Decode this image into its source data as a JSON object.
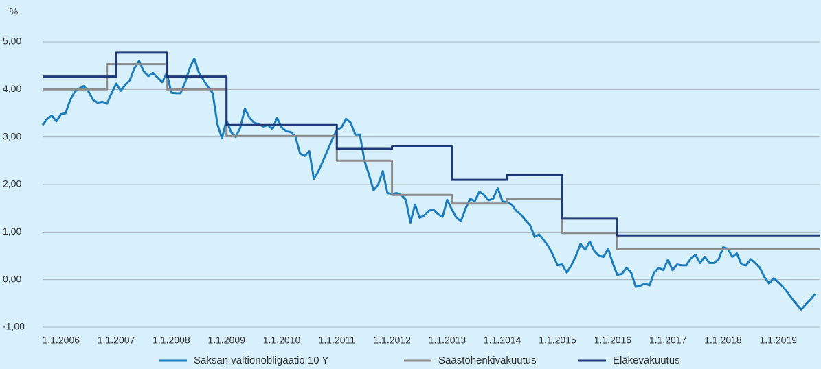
{
  "chart_data": {
    "type": "line",
    "y_label": "%",
    "xlim": [
      "1.9.2005",
      "1.10.2019"
    ],
    "xticks": [
      "1.1.2006",
      "1.1.2007",
      "1.1.2008",
      "1.1.2009",
      "1.1.2010",
      "1.1.2011",
      "1.1.2012",
      "1.1.2013",
      "1.1.2014",
      "1.1.2015",
      "1.1.2016",
      "1.1.2017",
      "1.1.2018",
      "1.1.2019"
    ],
    "ylim": [
      -1,
      5
    ],
    "yticks": [
      {
        "value": -1,
        "label": "-1,00"
      },
      {
        "value": 0,
        "label": "0,00"
      },
      {
        "value": 1,
        "label": "1,00"
      },
      {
        "value": 2,
        "label": "2,00"
      },
      {
        "value": 3,
        "label": "3,00"
      },
      {
        "value": 4,
        "label": "4,00"
      },
      {
        "value": 5,
        "label": "5,00"
      }
    ],
    "grid": true,
    "legend": "bottom",
    "series": [
      {
        "name": "Saksan valtionobligaatio 10 Y",
        "color": "#1a7dc0",
        "x": [
          "1.9.2005",
          "1.10.2005",
          "1.11.2005",
          "1.12.2005",
          "1.1.2006",
          "1.2.2006",
          "1.3.2006",
          "1.4.2006",
          "1.5.2006",
          "1.6.2006",
          "1.7.2006",
          "1.8.2006",
          "1.9.2006",
          "1.10.2006",
          "1.11.2006",
          "1.12.2006",
          "1.1.2007",
          "1.2.2007",
          "1.3.2007",
          "1.4.2007",
          "1.5.2007",
          "1.6.2007",
          "1.7.2007",
          "1.8.2007",
          "1.9.2007",
          "1.10.2007",
          "1.11.2007",
          "1.12.2007",
          "1.1.2008",
          "1.2.2008",
          "1.3.2008",
          "1.4.2008",
          "1.5.2008",
          "1.6.2008",
          "1.7.2008",
          "1.8.2008",
          "1.9.2008",
          "1.10.2008",
          "1.11.2008",
          "1.12.2008",
          "1.1.2009",
          "1.2.2009",
          "1.3.2009",
          "1.4.2009",
          "1.5.2009",
          "1.6.2009",
          "1.7.2009",
          "1.8.2009",
          "1.9.2009",
          "1.10.2009",
          "1.11.2009",
          "1.12.2009",
          "1.1.2010",
          "1.2.2010",
          "1.3.2010",
          "1.4.2010",
          "1.5.2010",
          "1.6.2010",
          "1.7.2010",
          "1.8.2010",
          "1.9.2010",
          "1.10.2010",
          "1.11.2010",
          "1.12.2010",
          "1.1.2011",
          "1.2.2011",
          "1.3.2011",
          "1.4.2011",
          "1.5.2011",
          "1.6.2011",
          "1.7.2011",
          "1.8.2011",
          "1.9.2011",
          "1.10.2011",
          "1.11.2011",
          "1.12.2011",
          "1.1.2012",
          "1.2.2012",
          "1.3.2012",
          "1.4.2012",
          "1.5.2012",
          "1.6.2012",
          "1.7.2012",
          "1.8.2012",
          "1.9.2012",
          "1.10.2012",
          "1.11.2012",
          "1.12.2012",
          "1.1.2013",
          "1.2.2013",
          "1.3.2013",
          "1.4.2013",
          "1.5.2013",
          "1.6.2013",
          "1.7.2013",
          "1.8.2013",
          "1.9.2013",
          "1.10.2013",
          "1.11.2013",
          "1.12.2013",
          "1.1.2014",
          "1.2.2014",
          "1.3.2014",
          "1.4.2014",
          "1.5.2014",
          "1.6.2014",
          "1.7.2014",
          "1.8.2014",
          "1.9.2014",
          "1.10.2014",
          "1.11.2014",
          "1.12.2014",
          "1.1.2015",
          "1.2.2015",
          "1.3.2015",
          "1.4.2015",
          "1.5.2015",
          "1.6.2015",
          "1.7.2015",
          "1.8.2015",
          "1.9.2015",
          "1.10.2015",
          "1.11.2015",
          "1.12.2015",
          "1.1.2016",
          "1.2.2016",
          "1.3.2016",
          "1.4.2016",
          "1.5.2016",
          "1.6.2016",
          "1.7.2016",
          "1.8.2016",
          "1.9.2016",
          "1.10.2016",
          "1.11.2016",
          "1.12.2016",
          "1.1.2017",
          "1.2.2017",
          "1.3.2017",
          "1.4.2017",
          "1.5.2017",
          "1.6.2017",
          "1.7.2017",
          "1.8.2017",
          "1.9.2017",
          "1.10.2017",
          "1.11.2017",
          "1.12.2017",
          "1.1.2018",
          "1.2.2018",
          "1.3.2018",
          "1.4.2018",
          "1.5.2018",
          "1.6.2018",
          "1.7.2018",
          "1.8.2018",
          "1.9.2018",
          "1.10.2018",
          "1.11.2018",
          "1.12.2018",
          "1.1.2019",
          "1.2.2019",
          "1.3.2019",
          "1.4.2019",
          "1.5.2019",
          "1.6.2019",
          "1.7.2019",
          "1.8.2019",
          "1.9.2019"
        ],
        "values": [
          3.25,
          3.38,
          3.45,
          3.33,
          3.48,
          3.5,
          3.78,
          3.95,
          4.02,
          4.07,
          3.95,
          3.78,
          3.72,
          3.74,
          3.7,
          3.92,
          4.12,
          3.97,
          4.1,
          4.2,
          4.45,
          4.6,
          4.38,
          4.28,
          4.35,
          4.25,
          4.15,
          4.35,
          3.93,
          3.92,
          3.92,
          4.15,
          4.45,
          4.65,
          4.35,
          4.2,
          4.05,
          3.92,
          3.28,
          2.97,
          3.35,
          3.1,
          3.0,
          3.2,
          3.6,
          3.4,
          3.3,
          3.27,
          3.22,
          3.25,
          3.17,
          3.4,
          3.2,
          3.12,
          3.1,
          3.0,
          2.65,
          2.6,
          2.7,
          2.12,
          2.28,
          2.5,
          2.72,
          2.95,
          3.15,
          3.2,
          3.38,
          3.3,
          3.05,
          3.05,
          2.5,
          2.2,
          1.88,
          2.0,
          2.28,
          1.82,
          1.8,
          1.82,
          1.78,
          1.68,
          1.2,
          1.58,
          1.3,
          1.35,
          1.45,
          1.47,
          1.38,
          1.32,
          1.68,
          1.48,
          1.3,
          1.23,
          1.5,
          1.7,
          1.65,
          1.85,
          1.78,
          1.67,
          1.7,
          1.92,
          1.65,
          1.62,
          1.58,
          1.45,
          1.37,
          1.25,
          1.15,
          0.9,
          0.95,
          0.83,
          0.7,
          0.52,
          0.3,
          0.32,
          0.15,
          0.3,
          0.5,
          0.75,
          0.63,
          0.8,
          0.6,
          0.5,
          0.48,
          0.65,
          0.35,
          0.1,
          0.12,
          0.25,
          0.15,
          -0.15,
          -0.13,
          -0.08,
          -0.12,
          0.15,
          0.25,
          0.2,
          0.42,
          0.2,
          0.32,
          0.3,
          0.3,
          0.45,
          0.52,
          0.35,
          0.48,
          0.35,
          0.35,
          0.42,
          0.68,
          0.65,
          0.48,
          0.55,
          0.32,
          0.3,
          0.43,
          0.35,
          0.25,
          0.05,
          -0.08,
          0.03,
          -0.05,
          -0.15,
          -0.27,
          -0.4,
          -0.52,
          -0.63,
          -0.52,
          -0.42,
          -0.3
        ]
      },
      {
        "name": "Säästöhenkivakuutus",
        "color": "#8c8c8c",
        "x": [
          "1.9.2005",
          "1.11.2006",
          "1.11.2006",
          "1.12.2007",
          "1.12.2007",
          "1.1.2009",
          "1.1.2009",
          "1.1.2011",
          "1.1.2011",
          "1.1.2012",
          "1.1.2012",
          "1.2.2013",
          "1.2.2013",
          "1.2.2014",
          "1.2.2014",
          "1.2.2015",
          "1.2.2015",
          "1.2.2016",
          "1.2.2016",
          "1.10.2019"
        ],
        "values": [
          4.0,
          4.0,
          4.53,
          4.53,
          4.0,
          4.0,
          3.02,
          3.02,
          2.5,
          2.5,
          1.78,
          1.78,
          1.6,
          1.6,
          1.7,
          1.7,
          0.98,
          0.98,
          0.64,
          0.64
        ]
      },
      {
        "name": "Eläkevakuutus",
        "color": "#1f3a7a",
        "x": [
          "1.9.2005",
          "1.1.2007",
          "1.1.2007",
          "1.12.2007",
          "1.12.2007",
          "1.1.2009",
          "1.1.2009",
          "1.1.2011",
          "1.1.2011",
          "1.1.2012",
          "1.1.2012",
          "1.2.2013",
          "1.2.2013",
          "1.2.2014",
          "1.2.2014",
          "1.2.2015",
          "1.2.2015",
          "1.2.2016",
          "1.2.2016",
          "1.10.2019"
        ],
        "values": [
          4.27,
          4.27,
          4.77,
          4.77,
          4.27,
          4.27,
          3.25,
          3.25,
          2.75,
          2.75,
          2.8,
          2.8,
          2.1,
          2.1,
          2.2,
          2.2,
          1.28,
          1.28,
          0.93,
          0.93
        ]
      }
    ]
  }
}
